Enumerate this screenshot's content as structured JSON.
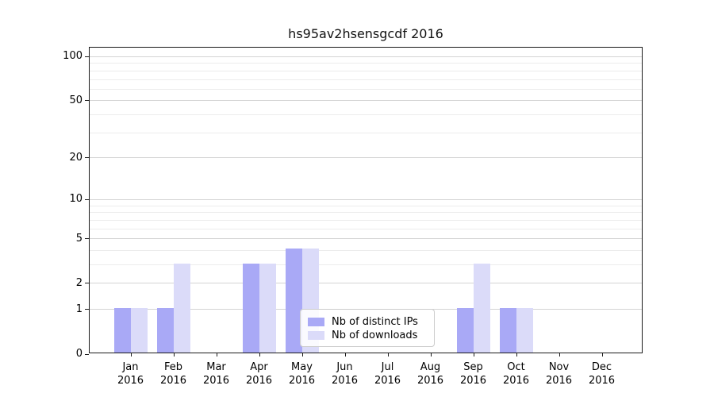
{
  "title": "hs95av2hsensgcdf 2016",
  "chart_data": {
    "type": "bar",
    "title": "hs95av2hsensgcdf 2016",
    "categories": [
      "Jan",
      "Feb",
      "Mar",
      "Apr",
      "May",
      "Jun",
      "Jul",
      "Aug",
      "Sep",
      "Oct",
      "Nov",
      "Dec"
    ],
    "year_label": "2016",
    "series": [
      {
        "name": "Nb of distinct IPs",
        "color": "#a9a9f6",
        "values": [
          1,
          1,
          0,
          3,
          4,
          0,
          0,
          0,
          1,
          1,
          0,
          0
        ]
      },
      {
        "name": "Nb of downloads",
        "color": "#dbdbf9",
        "values": [
          1,
          3,
          0,
          3,
          4,
          0,
          0,
          0,
          3,
          1,
          0,
          0
        ]
      }
    ],
    "xlabel": "",
    "ylabel": "",
    "yscale": "log1p",
    "ylim": [
      0,
      115.3
    ],
    "yticks_major": [
      0,
      1,
      2,
      5,
      10,
      20,
      50,
      100
    ],
    "yticks_minor": [
      3,
      4,
      6,
      7,
      8,
      9,
      30,
      40,
      60,
      70,
      80,
      90
    ],
    "grid": "horizontal",
    "legend_position": "inside lower center"
  },
  "colors": {
    "bar_distinct_ips": "#a9a9f6",
    "bar_downloads": "#dbdbf9",
    "gridline_major": "#d4d4d4",
    "gridline_minor": "#ececec",
    "spine": "#1a1a1a",
    "background": "#ffffff",
    "legend_border": "#cccccc"
  }
}
